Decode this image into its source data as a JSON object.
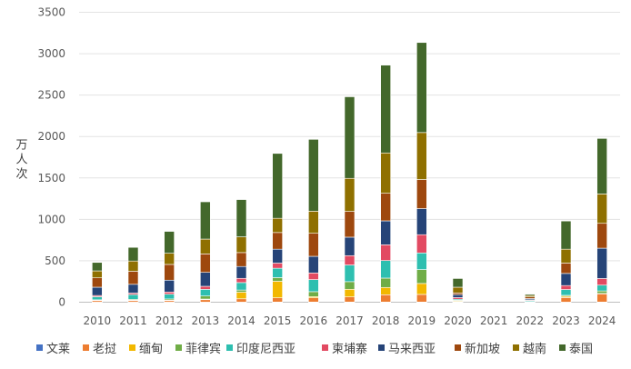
{
  "chart_data": {
    "type": "bar",
    "stacked": true,
    "title": "",
    "xlabel": "",
    "ylabel": "万人次",
    "ylim": [
      0,
      3500
    ],
    "yticks": [
      0,
      500,
      1000,
      1500,
      2000,
      2500,
      3000,
      3500
    ],
    "grid": true,
    "legend_position": "bottom",
    "categories": [
      "2010",
      "2011",
      "2012",
      "2013",
      "2014",
      "2015",
      "2016",
      "2017",
      "2018",
      "2019",
      "2020",
      "2021",
      "2022",
      "2023",
      "2024"
    ],
    "series": [
      {
        "name": "文莱",
        "color": "#4472C4",
        "values": [
          1,
          1,
          1,
          1,
          1,
          2,
          2,
          2,
          2,
          2,
          1,
          0,
          0,
          1,
          2
        ]
      },
      {
        "name": "老挝",
        "color": "#ED7D31",
        "values": [
          18,
          18,
          18,
          29,
          40,
          51,
          51,
          62,
          88,
          92,
          5,
          0,
          3,
          55,
          99
        ]
      },
      {
        "name": "缅甸",
        "color": "#F2B800",
        "values": [
          5,
          5,
          5,
          8,
          80,
          200,
          15,
          92,
          88,
          132,
          10,
          0,
          3,
          15,
          5
        ]
      },
      {
        "name": "菲律宾",
        "color": "#70AD47",
        "values": [
          5,
          10,
          15,
          37,
          26,
          44,
          59,
          92,
          113,
          168,
          8,
          0,
          3,
          12,
          30
        ]
      },
      {
        "name": "印度尼西亚",
        "color": "#2EBFB0",
        "values": [
          37,
          58,
          58,
          80,
          90,
          113,
          146,
          201,
          212,
          201,
          12,
          0,
          12,
          70,
          70
        ]
      },
      {
        "name": "柬埔寨",
        "color": "#E24A62",
        "values": [
          15,
          18,
          26,
          37,
          51,
          62,
          80,
          113,
          190,
          220,
          20,
          0,
          8,
          48,
          80
        ]
      },
      {
        "name": "马来西亚",
        "color": "#264478",
        "values": [
          100,
          106,
          143,
          168,
          143,
          168,
          201,
          223,
          289,
          315,
          35,
          0,
          15,
          146,
          366
        ]
      },
      {
        "name": "新加坡",
        "color": "#9E480E",
        "values": [
          113,
          157,
          190,
          223,
          168,
          201,
          278,
          311,
          333,
          351,
          20,
          0,
          20,
          125,
          300
        ]
      },
      {
        "name": "越南",
        "color": "#8F7000",
        "values": [
          84,
          124,
          135,
          179,
          190,
          172,
          267,
          399,
          487,
          567,
          70,
          0,
          18,
          168,
          355
        ]
      },
      {
        "name": "泰国",
        "color": "#43682B",
        "values": [
          102,
          165,
          264,
          450,
          450,
          783,
          867,
          985,
          1060,
          1087,
          105,
          0,
          15,
          340,
          670
        ]
      }
    ]
  }
}
